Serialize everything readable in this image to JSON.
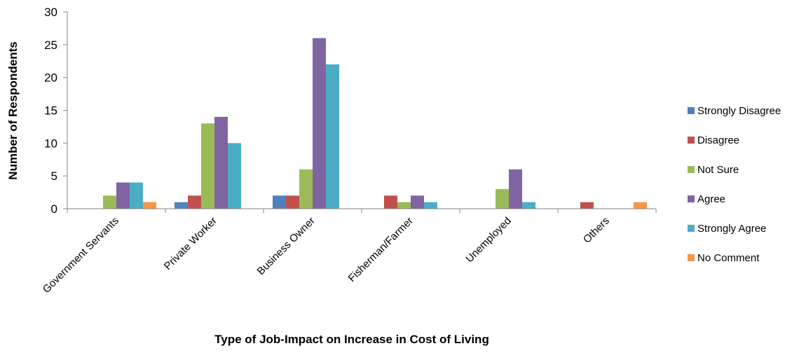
{
  "chart_data": {
    "type": "bar",
    "title": "",
    "xlabel": "Type of Job-Impact on Increase in Cost of Living",
    "ylabel": "Number of Respondents",
    "ylim": [
      0,
      30
    ],
    "yticks": [
      0,
      5,
      10,
      15,
      20,
      25,
      30
    ],
    "grid": false,
    "legend_position": "right",
    "categories": [
      "Government Servants",
      "Private Worker",
      "Business Owner",
      "Fisherman/Farmer",
      "Unemployed",
      "Others"
    ],
    "series": [
      {
        "name": "Strongly Disagree",
        "color": "#4f81bd",
        "values": [
          0,
          1,
          2,
          0,
          0,
          0
        ]
      },
      {
        "name": "Disagree",
        "color": "#c0504d",
        "values": [
          0,
          2,
          2,
          2,
          0,
          1
        ]
      },
      {
        "name": "Not Sure",
        "color": "#9bbb59",
        "values": [
          2,
          13,
          6,
          1,
          3,
          0
        ]
      },
      {
        "name": "Agree",
        "color": "#8064a2",
        "values": [
          4,
          14,
          26,
          2,
          6,
          0
        ]
      },
      {
        "name": "Strongly Agree",
        "color": "#4bacc6",
        "values": [
          4,
          10,
          22,
          1,
          1,
          0
        ]
      },
      {
        "name": "No Comment",
        "color": "#f79646",
        "values": [
          1,
          0,
          0,
          0,
          0,
          1
        ]
      }
    ]
  }
}
